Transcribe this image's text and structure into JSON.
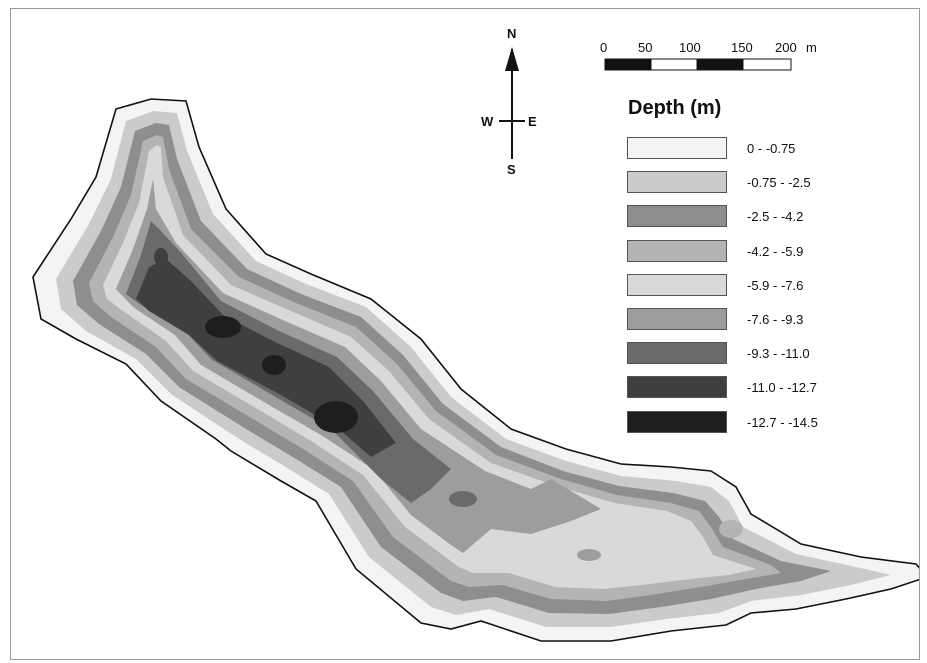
{
  "compass": {
    "north": "N",
    "south": "S",
    "west": "W",
    "east": "E"
  },
  "scale_bar": {
    "ticks": [
      "0",
      "50",
      "100",
      "150",
      "200"
    ],
    "unit": "m"
  },
  "legend": {
    "title": "Depth (m)",
    "classes": [
      {
        "label": "0 - -0.75",
        "color": "#f4f4f4"
      },
      {
        "label": "-0.75 - -2.5",
        "color": "#cbcbcb"
      },
      {
        "label": "-2.5 - -4.2",
        "color": "#8e8e8e"
      },
      {
        "label": "-4.2 - -5.9",
        "color": "#b4b4b4"
      },
      {
        "label": "-5.9 - -7.6",
        "color": "#d9d9d9"
      },
      {
        "label": "-7.6 - -9.3",
        "color": "#9d9d9d"
      },
      {
        "label": "-9.3 - -11.0",
        "color": "#6a6a6a"
      },
      {
        "label": "-11.0 - -12.7",
        "color": "#3f3f3f"
      },
      {
        "label": "-12.7 - -14.5",
        "color": "#1e1e1e"
      }
    ]
  }
}
